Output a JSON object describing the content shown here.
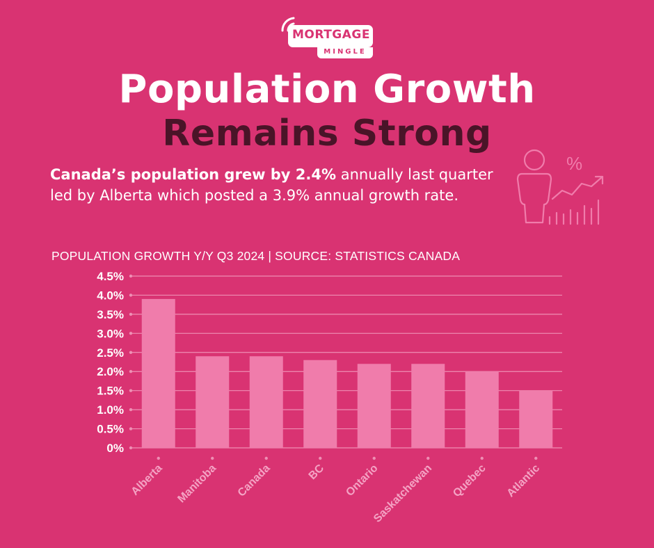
{
  "logo": {
    "main": "MORTGAGE",
    "sub": "MINGLE"
  },
  "headline": {
    "line1": "Population Growth",
    "line2": "Remains Strong"
  },
  "intro": {
    "bold": "Canada’s population grew by 2.4%",
    "rest": " annually last quarter led by Alberta which posted a 3.9% annual growth rate."
  },
  "illustration": {
    "icon": "person-growth-chart-icon",
    "symbol": "%"
  },
  "colors": {
    "background": "#d93372",
    "bar": "#f07cab",
    "gridline": "#ee8fb4",
    "headline_dark": "#4a1428"
  },
  "chart_data": {
    "type": "bar",
    "title": "POPULATION GROWTH Y/Y Q3 2024 | SOURCE: STATISTICS CANADA",
    "categories": [
      "Alberta",
      "Manitoba",
      "Canada",
      "BC",
      "Ontario",
      "Saskatchewan",
      "Quebec",
      "Atlantic"
    ],
    "values": [
      3.9,
      2.4,
      2.4,
      2.3,
      2.2,
      2.2,
      2.0,
      1.5
    ],
    "ylim": [
      0,
      4.5
    ],
    "yticks": [
      0,
      0.5,
      1.0,
      1.5,
      2.0,
      2.5,
      3.0,
      3.5,
      4.0,
      4.5
    ],
    "ytick_labels": [
      "0%",
      "0.5%",
      "1.0%",
      "1.5%",
      "2.0%",
      "2.5%",
      "3.0%",
      "3.5%",
      "4.0%",
      "4.5%"
    ],
    "xlabel": "",
    "ylabel": "",
    "grid": true,
    "legend": "none"
  }
}
